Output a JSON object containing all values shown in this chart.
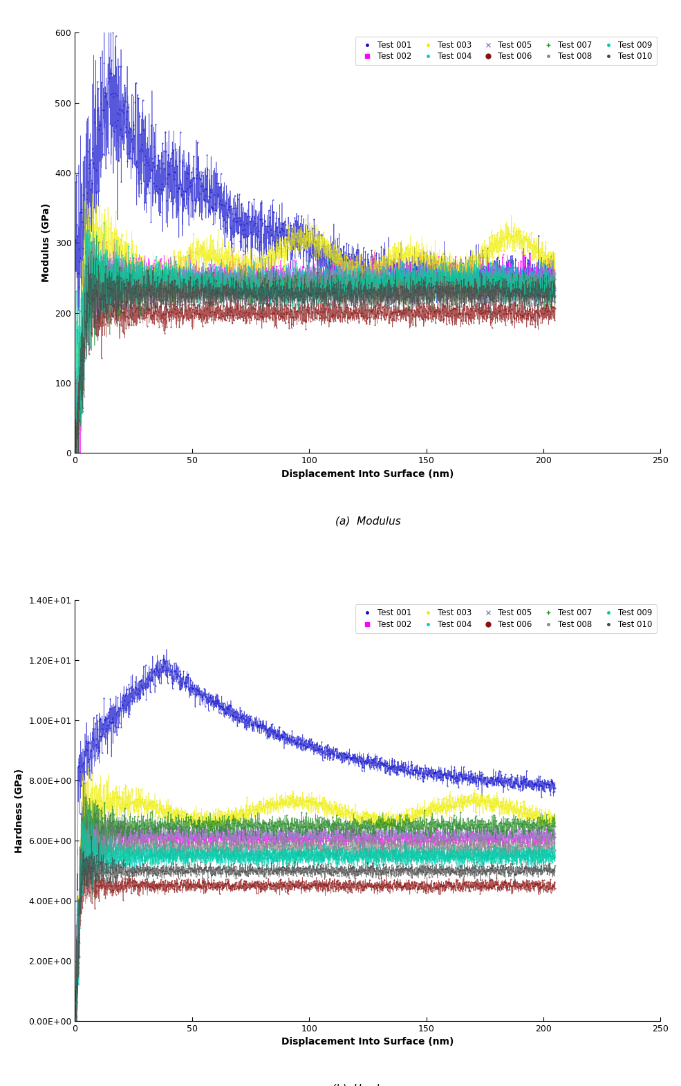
{
  "title_a": "(a)  Modulus",
  "title_b": "(b)  Hardness",
  "xlabel": "Displacement Into Surface (nm)",
  "ylabel_a": "Modulus (GPa)",
  "ylabel_b": "Hardness (GPa)",
  "xlim": [
    0,
    250
  ],
  "ylim_a": [
    0,
    600
  ],
  "ylim_b_min": 0,
  "ylim_b_max": 14,
  "yticks_a": [
    0,
    100,
    200,
    300,
    400,
    500,
    600
  ],
  "xticks": [
    0,
    50,
    100,
    150,
    200,
    250
  ],
  "tests": [
    "Test 001",
    "Test 002",
    "Test 003",
    "Test 004",
    "Test 005",
    "Test 006",
    "Test 007",
    "Test 008",
    "Test 009",
    "Test 010"
  ],
  "colors": [
    "#1010CC",
    "#FF00FF",
    "#EEEE00",
    "#00CCCC",
    "#8888BB",
    "#8B1010",
    "#228B22",
    "#888888",
    "#00CCA0",
    "#444444"
  ],
  "bg_color": "#FFFFFF",
  "modulus_baselines": [
    250,
    250,
    278,
    248,
    242,
    200,
    236,
    234,
    240,
    228
  ],
  "hardness_baselines": [
    7.5,
    6.1,
    7.0,
    5.5,
    6.2,
    4.5,
    6.5,
    5.8,
    5.5,
    5.0
  ],
  "figsize": [
    9.85,
    15.71
  ],
  "dpi": 100
}
